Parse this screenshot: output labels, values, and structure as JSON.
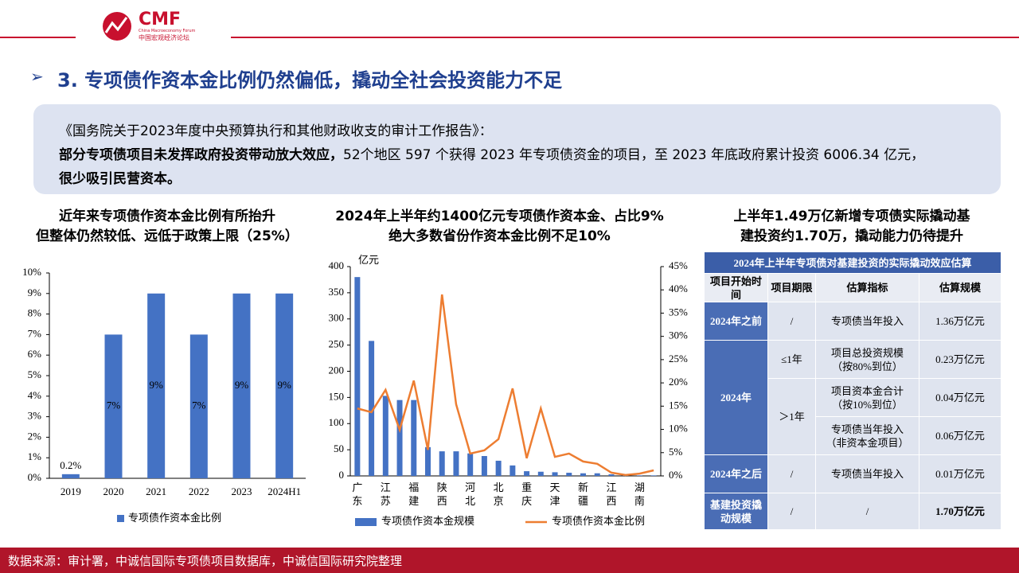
{
  "header": {
    "logo": "CMF",
    "logo_sub_en": "China Macroeconomy Forum",
    "logo_sub_cn": "中国宏观经济论坛",
    "title": "3. 专项债作资本金比例仍然偏低，撬动全社会投资能力不足"
  },
  "quote": {
    "line1": "《国务院关于2023年度中央预算执行和其他财政收支的审计工作报告》：",
    "bold1": "部分专项债项目未发挥政府投资带动放大效应，",
    "normal1": "52个地区 597 个获得 2023 年专项债资金的项目，至 2023 年底政府累计投资 6006.34 亿元，",
    "bold2": "很少吸引民营资本。"
  },
  "chart_data": [
    {
      "type": "bar",
      "title": "近年来专项债作资本金比例有所抬升\n但整体仍然较低、远低于政策上限（25%）",
      "categories": [
        "2019",
        "2020",
        "2021",
        "2022",
        "2023",
        "2024H1"
      ],
      "series": [
        {
          "name": "专项债作资本金比例",
          "color": "#4472c4",
          "values": [
            0.2,
            7,
            9,
            7,
            9,
            9
          ],
          "value_labels": [
            "0.2%",
            "7%",
            "9%",
            "7%",
            "9%",
            "9%"
          ]
        }
      ],
      "ylim": [
        0,
        10
      ],
      "yticks": [
        {
          "value": 0,
          "label": "0%"
        },
        {
          "value": 1,
          "label": "1%"
        },
        {
          "value": 2,
          "label": "2%"
        },
        {
          "value": 3,
          "label": "3%"
        },
        {
          "value": 4,
          "label": "4%"
        },
        {
          "value": 5,
          "label": "5%"
        },
        {
          "value": 6,
          "label": "6%"
        },
        {
          "value": 7,
          "label": "7%"
        },
        {
          "value": 8,
          "label": "8%"
        },
        {
          "value": 9,
          "label": "9%"
        },
        {
          "value": 10,
          "label": "10%"
        }
      ]
    },
    {
      "type": "bar_line",
      "title": "2024年上半年约1400亿元专项债作资本金、占比9%\n绝大多数省份作资本金比例不足10%",
      "y_label": "亿元",
      "categories": [
        "广东",
        null,
        "江苏",
        null,
        "福建",
        null,
        "陕西",
        null,
        "河北",
        null,
        "北京",
        null,
        "重庆",
        null,
        "天津",
        null,
        "新疆",
        null,
        "江西",
        null,
        "湖南",
        null
      ],
      "series": [
        {
          "name": "专项债作资本金规模",
          "color": "#4472c4",
          "values": [
            380,
            258,
            153,
            145,
            145,
            55,
            47,
            47,
            43,
            38,
            29,
            20,
            9,
            8,
            7,
            6,
            5,
            5,
            3,
            2,
            1,
            1
          ]
        },
        {
          "name": "专项债作资本金比例",
          "color": "#ed7d31",
          "axis": "y2",
          "values": [
            14.5,
            13.7,
            18.5,
            9.9,
            20.5,
            5.6,
            39,
            15.4,
            4.8,
            5.5,
            7.9,
            18.8,
            3.8,
            14.5,
            4.1,
            4.8,
            3.1,
            2.6,
            0.7,
            0.2,
            0.5,
            1.2
          ]
        }
      ],
      "ylim": [
        0,
        400
      ],
      "yticks": [
        0,
        50,
        100,
        150,
        200,
        250,
        300,
        350,
        400
      ],
      "y2lim": [
        0,
        45
      ],
      "y2ticks": [
        {
          "value": 0,
          "label": "0%"
        },
        {
          "value": 5,
          "label": "5%"
        },
        {
          "value": 10,
          "label": "10%"
        },
        {
          "value": 15,
          "label": "15%"
        },
        {
          "value": 20,
          "label": "20%"
        },
        {
          "value": 25,
          "label": "25%"
        },
        {
          "value": 30,
          "label": "30%"
        },
        {
          "value": 35,
          "label": "35%"
        },
        {
          "value": 40,
          "label": "40%"
        },
        {
          "value": 45,
          "label": "45%"
        }
      ]
    }
  ],
  "table_heading": "上半年1.49万亿新增专项债实际撬动基\n建投资约1.70万，撬动能力仍待提升",
  "table": {
    "title": "2024年上半年专项债对基建投资的实际撬动效应估算",
    "header": [
      "项目开始时\n间",
      "项目期限",
      "估算指标",
      "估算规模"
    ],
    "rows": [
      [
        "2024年之前",
        "/",
        "专项债当年投入",
        "1.36万亿元"
      ],
      [
        "2024年",
        "≤1年",
        "项目总投资规模\n（按80%到位）",
        "0.23万亿元"
      ],
      [
        "＞1年",
        "项目资本金合计\n（按10%到位）",
        "0.04万亿元"
      ],
      [
        "专项债当年投入\n（非资本金项目）",
        "0.06万亿元"
      ],
      [
        "2024年之后",
        "/",
        "专项债当年投入",
        "0.01万亿元"
      ],
      [
        "基建投资撬\n动规模",
        "/",
        "/",
        "1.70万亿元"
      ]
    ]
  },
  "footer": "数据来源：审计署，中诚信国际专项债项目数据库，中诚信国际研究院整理"
}
